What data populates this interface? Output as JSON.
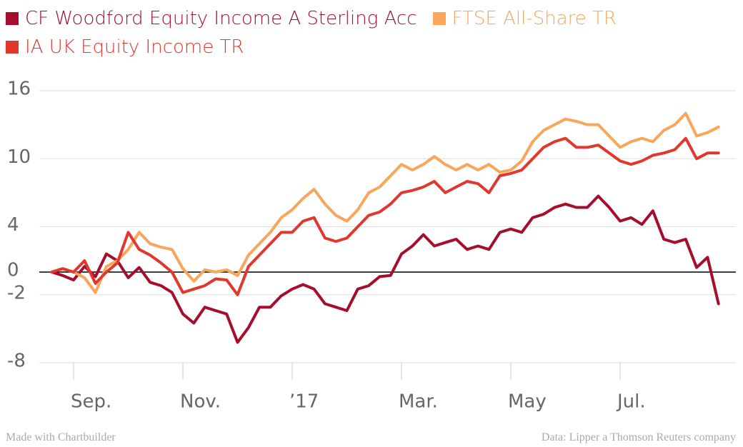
{
  "chart_data": {
    "type": "line",
    "categories": [
      null,
      null,
      "Sep.",
      null,
      null,
      null,
      null,
      null,
      null,
      null,
      null,
      null,
      "Nov.",
      null,
      null,
      null,
      null,
      null,
      null,
      null,
      null,
      null,
      "’17",
      null,
      null,
      null,
      null,
      null,
      null,
      null,
      null,
      null,
      "Mar.",
      null,
      null,
      null,
      null,
      null,
      null,
      null,
      null,
      null,
      "May",
      null,
      null,
      null,
      null,
      null,
      null,
      null,
      null,
      null,
      "Jul.",
      null,
      null,
      null,
      null,
      null,
      null,
      null,
      null,
      null
    ],
    "series": [
      {
        "name": "CF Woodford Equity Income A Sterling Acc",
        "color": "#a50f2d",
        "values": [
          0,
          -0.3,
          -0.7,
          0.5,
          -0.4,
          1.6,
          1.0,
          -0.5,
          0.4,
          -0.9,
          -1.2,
          -1.8,
          -3.7,
          -4.5,
          -3.1,
          -3.4,
          -3.7,
          -6.2,
          -4.9,
          -3.1,
          -3.1,
          -2.1,
          -1.5,
          -1.1,
          -1.5,
          -2.8,
          -3.1,
          -3.4,
          -1.5,
          -1.2,
          -0.4,
          -0.3,
          1.6,
          2.3,
          3.3,
          2.3,
          2.6,
          2.9,
          2.0,
          2.3,
          2.0,
          3.5,
          3.8,
          3.5,
          4.8,
          5.1,
          5.7,
          6.0,
          5.7,
          5.7,
          6.7,
          5.7,
          4.5,
          4.8,
          4.2,
          5.4,
          2.9,
          2.6,
          2.9,
          0.4,
          1.3,
          -2.8
        ]
      },
      {
        "name": "FTSE All-Share TR",
        "color": "#f9a65a",
        "values": [
          0,
          0.3,
          0,
          -0.5,
          -1.8,
          0.5,
          1.0,
          2.0,
          3.5,
          2.5,
          2.2,
          2.0,
          0.3,
          -0.8,
          0.2,
          0,
          0.2,
          -0.3,
          1.5,
          2.5,
          3.5,
          4.8,
          5.5,
          6.5,
          7.3,
          6.0,
          5.0,
          4.5,
          5.5,
          7.0,
          7.5,
          8.5,
          9.5,
          9.0,
          9.5,
          10.2,
          9.5,
          9.0,
          9.5,
          9.0,
          9.5,
          8.8,
          9.0,
          9.8,
          11.5,
          12.5,
          13.0,
          13.5,
          13.3,
          13.0,
          13.0,
          12.0,
          11.0,
          11.5,
          11.8,
          11.5,
          12.5,
          13.0,
          14.0,
          12.0,
          12.3,
          12.8
        ]
      },
      {
        "name": "IA UK Equity Income TR",
        "color": "#e0382c",
        "values": [
          0,
          0.3,
          0,
          1.0,
          -1.0,
          0,
          0.8,
          3.5,
          2.0,
          1.5,
          0.8,
          0,
          -1.8,
          -1.5,
          -1.2,
          -0.6,
          -0.7,
          -2.0,
          0.5,
          1.5,
          2.5,
          3.5,
          3.5,
          4.5,
          4.8,
          3.0,
          2.7,
          3.0,
          4.0,
          5.0,
          5.3,
          6.0,
          7.0,
          7.2,
          7.5,
          8.0,
          7.0,
          7.5,
          8.0,
          7.8,
          7.0,
          8.5,
          8.7,
          9.0,
          10.0,
          11.0,
          11.5,
          11.8,
          11.0,
          11.0,
          11.2,
          10.5,
          9.8,
          9.5,
          9.8,
          10.3,
          10.5,
          10.8,
          11.8,
          10.0,
          10.5,
          10.5
        ]
      }
    ],
    "ylim": [
      -8,
      16
    ],
    "yticks": [
      16,
      10,
      4,
      0,
      -2,
      -8
    ],
    "grid": true,
    "source": "Data: Lipper a Thomson Reuters company",
    "credit": "Made with Chartbuilder"
  }
}
